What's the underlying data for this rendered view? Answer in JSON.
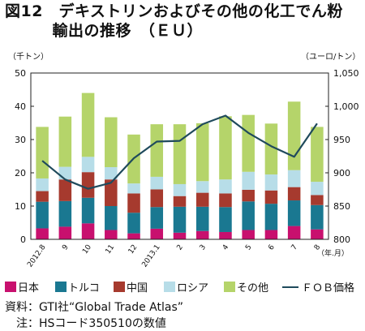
{
  "title_line1": "図12　デキストリンおよびその他の化工でん粉",
  "title_line2": "　　　輸出の推移　（ＥＵ）",
  "left_unit": "（千トン）",
  "right_unit": "（ユーロ/トン）",
  "x_unit": "（年.月）",
  "source_line1": "資料：GTI社“Global Trade Atlas”",
  "source_line2": "　注：HSコード350510の数値",
  "colors": {
    "japan": "#c8106e",
    "turkey": "#1a7891",
    "china": "#a63a2e",
    "russia": "#b7dde8",
    "other": "#b5d46a",
    "fob": "#1f4a5c"
  },
  "chart_data": {
    "type": "bar",
    "stacked": true,
    "categories": [
      "2012.8",
      "9",
      "10",
      "11",
      "12",
      "2013.1",
      "2",
      "3",
      "4",
      "5",
      "6",
      "7",
      "8"
    ],
    "series": [
      {
        "name": "日本",
        "values": [
          3.3,
          3.8,
          4.8,
          2.8,
          1.8,
          3.2,
          2.0,
          2.5,
          2.2,
          2.8,
          2.8,
          4.0,
          3.0
        ]
      },
      {
        "name": "トルコ",
        "values": [
          8.0,
          7.7,
          7.7,
          7.2,
          6.2,
          6.5,
          7.8,
          7.3,
          7.5,
          8.6,
          7.9,
          7.7,
          7.3
        ]
      },
      {
        "name": "中国",
        "values": [
          3.2,
          6.5,
          7.7,
          8.0,
          5.8,
          5.3,
          3.2,
          4.2,
          4.1,
          3.5,
          4.0,
          4.0,
          3.0
        ]
      },
      {
        "name": "ロシア",
        "values": [
          3.8,
          3.8,
          4.6,
          3.7,
          3.0,
          3.8,
          3.6,
          3.5,
          4.2,
          5.4,
          4.8,
          5.1,
          4.0
        ]
      },
      {
        "name": "その他",
        "values": [
          15.5,
          15.1,
          19.2,
          15.0,
          14.7,
          15.8,
          18.0,
          17.4,
          19.0,
          17.1,
          15.3,
          20.6,
          16.5
        ]
      }
    ],
    "line": {
      "name": "ＦＯＢ価格",
      "axis": "right",
      "values": [
        918,
        890,
        876,
        885,
        922,
        947,
        948,
        973,
        986,
        960,
        940,
        924,
        974
      ]
    },
    "ylim": [
      0,
      50
    ],
    "y_ticks": [
      0,
      10,
      20,
      30,
      40,
      50
    ],
    "y2lim": [
      800,
      1050
    ],
    "y2_ticks": [
      "800",
      "850",
      "900",
      "950",
      "1,000",
      "1,050"
    ],
    "ylabel": "（千トン）",
    "y2label": "（ユーロ/トン）",
    "xlabel": "（年.月）",
    "legend": "bottom",
    "grid": false
  }
}
